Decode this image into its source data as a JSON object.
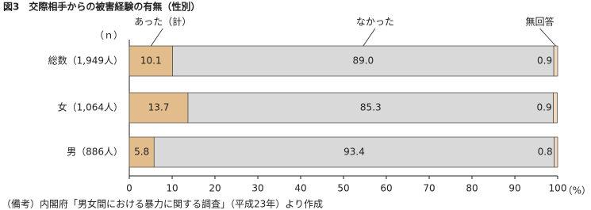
{
  "chart_data": {
    "type": "stacked_bar_horizontal",
    "title": "図3　交際相手からの被害経験の有無（性別）",
    "category_header": "（ｎ）",
    "categories": [
      "総数（1,949人）",
      "女（1,064人）",
      "男（886人）"
    ],
    "series": [
      {
        "name": "あった（計）",
        "color": "#e3bc8c",
        "values": [
          10.1,
          13.7,
          5.8
        ]
      },
      {
        "name": "なかった",
        "color": "#d9d9d9",
        "values": [
          89,
          85.3,
          93.4
        ],
        "value_labels": [
          "89.0",
          "85.3",
          "93.4"
        ]
      },
      {
        "name": "無回答",
        "color": "#f3d9c0",
        "values": [
          0.9,
          0.9,
          0.8
        ]
      }
    ],
    "xlim": [
      0,
      100
    ],
    "xticks": [
      0,
      10,
      20,
      30,
      40,
      50,
      60,
      70,
      80,
      90,
      100
    ],
    "x_unit": "（%）",
    "source": "（備考）内閣府「男女間における暴力に関する調査」（平成23年）より作成"
  }
}
